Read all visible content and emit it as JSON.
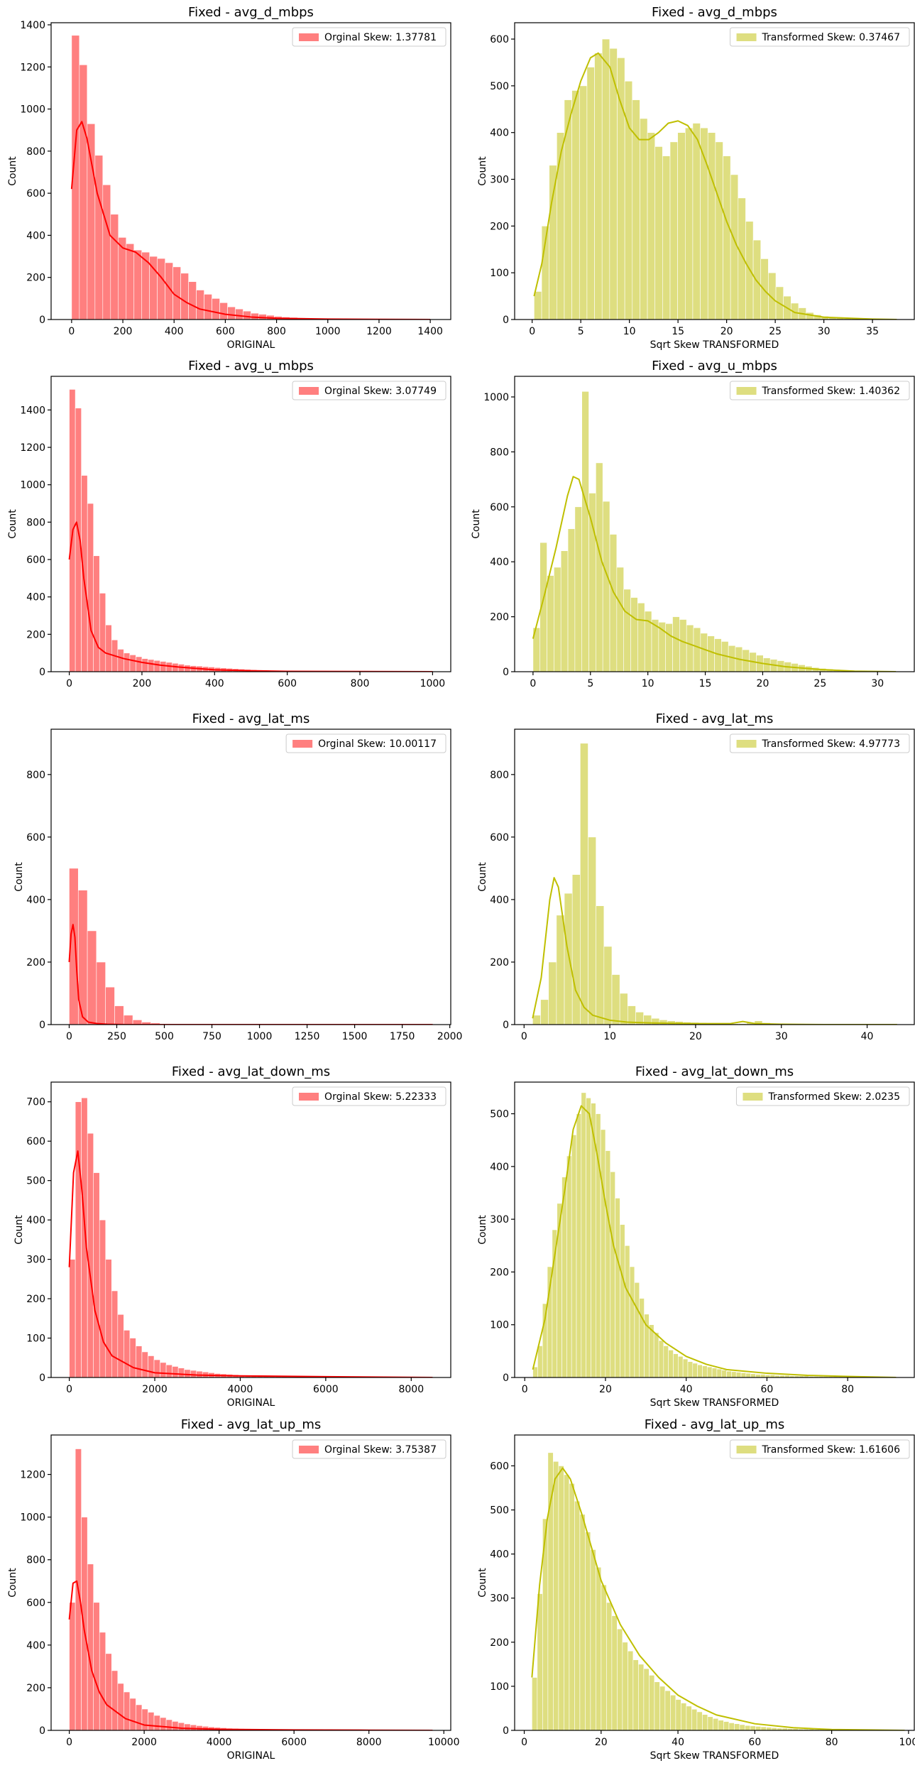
{
  "chart_data": [
    {
      "type": "histogram",
      "title": "Fixed - avg_d_mbps",
      "xlabel": "ORIGINAL",
      "ylabel": "Count",
      "legend_label": "Orginal Skew: 1.37781",
      "legend_position": "top-right",
      "color": "#ff0000",
      "xlim": [
        -80,
        1480
      ],
      "ylim": [
        0,
        1410
      ],
      "xticks": [
        0,
        200,
        400,
        600,
        800,
        1000,
        1200,
        1400
      ],
      "yticks": [
        0,
        200,
        400,
        600,
        800,
        1000,
        1200,
        1400
      ],
      "bin_edges": [
        0,
        1400
      ],
      "counts": [
        1350,
        1210,
        930,
        780,
        640,
        500,
        390,
        360,
        330,
        320,
        300,
        290,
        270,
        250,
        220,
        180,
        140,
        120,
        100,
        80,
        60,
        50,
        40,
        30,
        25,
        20,
        15,
        12,
        10,
        8,
        6,
        5,
        4,
        3,
        3,
        2,
        2,
        2,
        1,
        1,
        1,
        1,
        1,
        1,
        1,
        1
      ],
      "kde_x": [
        0,
        20,
        40,
        60,
        100,
        150,
        200,
        250,
        300,
        350,
        400,
        450,
        500,
        600,
        700,
        800,
        1000,
        1200,
        1400
      ],
      "kde_y": [
        620,
        900,
        940,
        860,
        600,
        400,
        340,
        320,
        270,
        200,
        120,
        80,
        50,
        25,
        12,
        6,
        2,
        1,
        0
      ]
    },
    {
      "type": "histogram",
      "title": "Fixed - avg_d_mbps",
      "xlabel": "Sqrt Skew TRANSFORMED",
      "ylabel": "Count",
      "legend_label": "Transformed Skew: 0.37467",
      "legend_position": "top-right",
      "color": "#bfbf00",
      "xlim": [
        -1.8,
        39.3
      ],
      "ylim": [
        0,
        635
      ],
      "xticks": [
        0,
        5,
        10,
        15,
        20,
        25,
        30,
        35
      ],
      "yticks": [
        0,
        100,
        200,
        300,
        400,
        500,
        600
      ],
      "bin_edges": [
        0.2,
        37.5
      ],
      "counts": [
        60,
        200,
        330,
        400,
        470,
        490,
        500,
        540,
        570,
        600,
        580,
        560,
        510,
        470,
        430,
        400,
        370,
        350,
        380,
        400,
        410,
        420,
        410,
        400,
        380,
        350,
        310,
        260,
        210,
        170,
        130,
        100,
        70,
        50,
        35,
        25,
        15,
        10,
        7,
        5,
        3,
        2,
        2,
        1,
        1,
        1,
        1,
        1
      ],
      "kde_x": [
        0.2,
        1,
        2,
        3,
        4,
        5,
        6,
        6.8,
        8,
        9,
        10,
        11,
        12,
        13,
        14,
        15,
        16,
        17,
        18,
        19,
        20,
        21,
        22,
        23,
        24,
        25,
        27,
        30,
        35,
        37.5
      ],
      "kde_y": [
        50,
        120,
        250,
        360,
        440,
        510,
        560,
        570,
        540,
        470,
        410,
        385,
        385,
        400,
        420,
        425,
        415,
        385,
        330,
        270,
        210,
        160,
        120,
        85,
        60,
        40,
        15,
        5,
        1,
        0
      ]
    },
    {
      "type": "histogram",
      "title": "Fixed - avg_u_mbps",
      "xlabel": "",
      "ylabel": "Count",
      "legend_label": "Orginal Skew: 3.07749",
      "legend_position": "top-right",
      "color": "#ff0000",
      "xlim": [
        -50,
        1050
      ],
      "ylim": [
        0,
        1580
      ],
      "xticks": [
        0,
        200,
        400,
        600,
        800,
        1000
      ],
      "yticks": [
        0,
        200,
        400,
        600,
        800,
        1000,
        1200,
        1400
      ],
      "bin_edges": [
        0,
        1000
      ],
      "counts": [
        1510,
        1410,
        1050,
        900,
        620,
        420,
        250,
        170,
        120,
        100,
        90,
        80,
        70,
        65,
        60,
        55,
        50,
        45,
        40,
        35,
        32,
        30,
        27,
        25,
        22,
        20,
        18,
        16,
        14,
        12,
        10,
        9,
        8,
        7,
        6,
        5,
        4,
        4,
        3,
        3,
        2,
        2,
        2,
        2,
        1,
        1,
        1,
        1,
        1,
        1,
        1,
        1,
        1,
        1,
        1,
        1,
        1,
        1,
        1,
        1
      ],
      "kde_x": [
        0,
        10,
        20,
        30,
        40,
        60,
        80,
        100,
        150,
        200,
        250,
        300,
        400,
        500,
        600,
        800,
        1000
      ],
      "kde_y": [
        600,
        760,
        800,
        700,
        500,
        220,
        130,
        100,
        70,
        50,
        35,
        25,
        10,
        5,
        2,
        1,
        0
      ]
    },
    {
      "type": "histogram",
      "title": "Fixed - avg_u_mbps",
      "xlabel": "",
      "ylabel": "Count",
      "legend_label": "Transformed Skew: 1.40362",
      "legend_position": "top-right",
      "color": "#bfbf00",
      "xlim": [
        -1.6,
        33.2
      ],
      "ylim": [
        0,
        1075
      ],
      "xticks": [
        0,
        5,
        10,
        15,
        20,
        25,
        30
      ],
      "yticks": [
        0,
        200,
        400,
        600,
        800,
        1000
      ],
      "bin_edges": [
        0,
        31.6
      ],
      "counts": [
        160,
        470,
        350,
        380,
        440,
        520,
        600,
        1020,
        650,
        760,
        620,
        500,
        380,
        300,
        270,
        250,
        220,
        190,
        180,
        175,
        200,
        190,
        170,
        160,
        140,
        130,
        120,
        110,
        95,
        90,
        80,
        70,
        60,
        50,
        45,
        40,
        35,
        30,
        25,
        20,
        15,
        12,
        10,
        8,
        6,
        5,
        4,
        3,
        2,
        2,
        1,
        1
      ],
      "kde_x": [
        0,
        1,
        2,
        3,
        3.5,
        4,
        5,
        6,
        7,
        8,
        9,
        10,
        11,
        12,
        13,
        14,
        15,
        16,
        18,
        20,
        22,
        25,
        28,
        31.6
      ],
      "kde_y": [
        120,
        280,
        450,
        640,
        710,
        700,
        560,
        400,
        290,
        220,
        190,
        185,
        160,
        130,
        110,
        95,
        80,
        65,
        45,
        30,
        18,
        8,
        2,
        0
      ]
    },
    {
      "type": "histogram",
      "title": "Fixed - avg_lat_ms",
      "xlabel": "",
      "ylabel": "Count",
      "legend_label": "Orginal Skew: 10.00117",
      "legend_position": "top-right",
      "color": "#ff0000",
      "xlim": [
        -95,
        2005
      ],
      "ylim": [
        0,
        945
      ],
      "xticks": [
        0,
        250,
        500,
        750,
        1000,
        1250,
        1500,
        1750,
        2000
      ],
      "yticks": [
        0,
        200,
        400,
        600,
        800
      ],
      "bin_edges": [
        0,
        1910
      ],
      "counts": [
        500,
        430,
        300,
        200,
        120,
        60,
        30,
        15,
        8,
        5,
        3,
        2,
        2,
        1,
        1,
        1,
        1,
        1,
        1,
        1,
        1,
        1,
        1,
        1,
        1,
        1,
        1,
        1,
        1,
        1,
        1,
        1,
        1,
        1,
        1,
        1,
        1,
        1,
        1,
        1
      ],
      "kde_x": [
        0,
        10,
        20,
        30,
        40,
        50,
        70,
        100,
        150,
        200,
        300,
        500,
        1000,
        1500,
        1910
      ],
      "kde_y": [
        200,
        290,
        320,
        280,
        170,
        80,
        25,
        8,
        3,
        1,
        0,
        0,
        0,
        0,
        0
      ]
    },
    {
      "type": "histogram",
      "title": "Fixed - avg_lat_ms",
      "xlabel": "",
      "ylabel": "Count",
      "legend_label": "Transformed Skew: 4.97773",
      "legend_position": "top-right",
      "color": "#bfbf00",
      "xlim": [
        -1.1,
        45.5
      ],
      "ylim": [
        0,
        945
      ],
      "xticks": [
        0,
        10,
        20,
        30,
        40
      ],
      "yticks": [
        0,
        200,
        400,
        600,
        800
      ],
      "bin_edges": [
        1,
        43.5
      ],
      "counts": [
        30,
        80,
        200,
        350,
        420,
        480,
        900,
        600,
        380,
        250,
        160,
        100,
        60,
        40,
        30,
        20,
        15,
        12,
        10,
        8,
        7,
        6,
        5,
        4,
        4,
        3,
        3,
        6,
        12,
        6,
        3,
        2,
        2,
        2,
        1,
        1,
        1,
        1,
        1,
        1,
        1,
        1,
        1,
        1,
        1,
        1
      ],
      "kde_x": [
        1,
        2,
        3,
        3.5,
        4,
        5,
        6,
        7,
        8,
        10,
        12,
        15,
        20,
        24,
        25.5,
        27,
        30,
        35,
        43.5
      ],
      "kde_y": [
        20,
        150,
        400,
        470,
        440,
        250,
        110,
        55,
        30,
        14,
        8,
        5,
        3,
        3,
        10,
        3,
        1,
        0,
        0
      ]
    },
    {
      "type": "histogram",
      "title": "Fixed - avg_lat_down_ms",
      "xlabel": "ORIGINAL",
      "ylabel": "Count",
      "legend_label": "Orginal Skew: 5.22333",
      "legend_position": "top-right",
      "color": "#ff0000",
      "xlim": [
        -425,
        8925
      ],
      "ylim": [
        0,
        750
      ],
      "xticks": [
        0,
        2000,
        4000,
        6000,
        8000
      ],
      "yticks": [
        0,
        100,
        200,
        300,
        400,
        500,
        600,
        700
      ],
      "bin_edges": [
        0,
        8500
      ],
      "counts": [
        300,
        700,
        710,
        620,
        520,
        400,
        300,
        220,
        160,
        120,
        100,
        80,
        65,
        55,
        45,
        38,
        32,
        28,
        24,
        20,
        18,
        16,
        14,
        12,
        10,
        9,
        8,
        7,
        6,
        5,
        5,
        4,
        4,
        3,
        3,
        3,
        2,
        2,
        2,
        2,
        2,
        2,
        1,
        1,
        1,
        1,
        1,
        1,
        1,
        1,
        1,
        1,
        1,
        1,
        1,
        1,
        1,
        1,
        1,
        1
      ],
      "kde_x": [
        0,
        100,
        200,
        300,
        400,
        600,
        800,
        1000,
        1500,
        2000,
        3000,
        4000,
        6000,
        8500
      ],
      "kde_y": [
        280,
        520,
        575,
        470,
        330,
        170,
        90,
        55,
        25,
        12,
        6,
        4,
        2,
        0
      ]
    },
    {
      "type": "histogram",
      "title": "Fixed - avg_lat_down_ms",
      "xlabel": "Sqrt Skew TRANSFORMED",
      "ylabel": "Count",
      "legend_label": "Transformed Skew: 2.0235",
      "legend_position": "top-right",
      "color": "#bfbf00",
      "xlim": [
        -2.5,
        96.5
      ],
      "ylim": [
        0,
        560
      ],
      "xticks": [
        0,
        20,
        40,
        60,
        80
      ],
      "yticks": [
        0,
        100,
        200,
        300,
        400,
        500
      ],
      "bin_edges": [
        2,
        92
      ],
      "counts": [
        20,
        60,
        140,
        210,
        280,
        330,
        380,
        420,
        460,
        500,
        540,
        530,
        520,
        500,
        470,
        430,
        390,
        340,
        290,
        250,
        210,
        180,
        150,
        120,
        100,
        85,
        70,
        60,
        52,
        45,
        40,
        35,
        30,
        27,
        24,
        22,
        20,
        18,
        16,
        14,
        12,
        11,
        10,
        9,
        8,
        7,
        6,
        6,
        5,
        5,
        4,
        4,
        4,
        3,
        3,
        3,
        3,
        2,
        2,
        2,
        2,
        2,
        2,
        2,
        1,
        1,
        1,
        1,
        1,
        1,
        1,
        1,
        1,
        1,
        1
      ],
      "kde_x": [
        2,
        5,
        8,
        10,
        12,
        14,
        16,
        18,
        20,
        22,
        25,
        30,
        35,
        40,
        45,
        50,
        60,
        70,
        80,
        92
      ],
      "kde_y": [
        15,
        110,
        260,
        360,
        470,
        515,
        500,
        420,
        330,
        250,
        170,
        100,
        65,
        40,
        25,
        15,
        8,
        4,
        2,
        0
      ]
    },
    {
      "type": "histogram",
      "title": "Fixed - avg_lat_up_ms",
      "xlabel": "ORIGINAL",
      "ylabel": "Count",
      "legend_label": "Orginal Skew: 3.75387",
      "legend_position": "top-right",
      "color": "#ff0000",
      "xlim": [
        -485,
        10185
      ],
      "ylim": [
        0,
        1385
      ],
      "xticks": [
        0,
        2000,
        4000,
        6000,
        8000,
        10000
      ],
      "yticks": [
        0,
        200,
        400,
        600,
        800,
        1000,
        1200
      ],
      "bin_edges": [
        0,
        9700
      ],
      "counts": [
        600,
        1320,
        1000,
        780,
        600,
        460,
        360,
        280,
        220,
        180,
        150,
        120,
        100,
        85,
        70,
        60,
        50,
        42,
        36,
        30,
        26,
        22,
        19,
        16,
        14,
        12,
        10,
        9,
        8,
        7,
        6,
        5,
        5,
        4,
        4,
        3,
        3,
        3,
        2,
        2,
        2,
        2,
        2,
        1,
        1,
        1,
        1,
        1,
        1,
        1,
        1,
        1,
        1,
        1,
        1,
        1,
        1,
        1,
        1,
        1
      ],
      "kde_x": [
        0,
        100,
        200,
        300,
        400,
        600,
        800,
        1000,
        1500,
        2000,
        3000,
        4000,
        6000,
        8000,
        9700
      ],
      "kde_y": [
        520,
        690,
        700,
        600,
        470,
        280,
        180,
        120,
        55,
        25,
        10,
        5,
        2,
        1,
        0
      ]
    },
    {
      "type": "histogram",
      "title": "Fixed - avg_lat_up_ms",
      "xlabel": "Sqrt Skew TRANSFORMED",
      "ylabel": "Count",
      "legend_label": "Transformed Skew: 1.61606",
      "legend_position": "top-right",
      "color": "#bfbf00",
      "xlim": [
        -2.5,
        101.5
      ],
      "ylim": [
        0,
        670
      ],
      "xticks": [
        0,
        20,
        40,
        60,
        80,
        100
      ],
      "yticks": [
        0,
        100,
        200,
        300,
        400,
        500,
        600
      ],
      "bin_edges": [
        2,
        99
      ],
      "counts": [
        120,
        310,
        480,
        630,
        610,
        600,
        580,
        560,
        520,
        490,
        450,
        410,
        370,
        330,
        290,
        260,
        230,
        200,
        180,
        160,
        150,
        140,
        125,
        110,
        100,
        90,
        80,
        70,
        62,
        55,
        48,
        42,
        36,
        31,
        27,
        23,
        20,
        17,
        15,
        13,
        11,
        10,
        9,
        8,
        7,
        6,
        5,
        5,
        4,
        4,
        3,
        3,
        3,
        2,
        2,
        2,
        2,
        2,
        1,
        1,
        1,
        1,
        1,
        1,
        1,
        1,
        1,
        1,
        1,
        1
      ],
      "kde_x": [
        2,
        4,
        6,
        8,
        10,
        12,
        15,
        18,
        20,
        25,
        30,
        35,
        40,
        45,
        50,
        60,
        70,
        80,
        90,
        99
      ],
      "kde_y": [
        120,
        330,
        480,
        570,
        595,
        570,
        490,
        400,
        340,
        240,
        170,
        120,
        80,
        55,
        35,
        15,
        6,
        2,
        1,
        0
      ]
    }
  ]
}
